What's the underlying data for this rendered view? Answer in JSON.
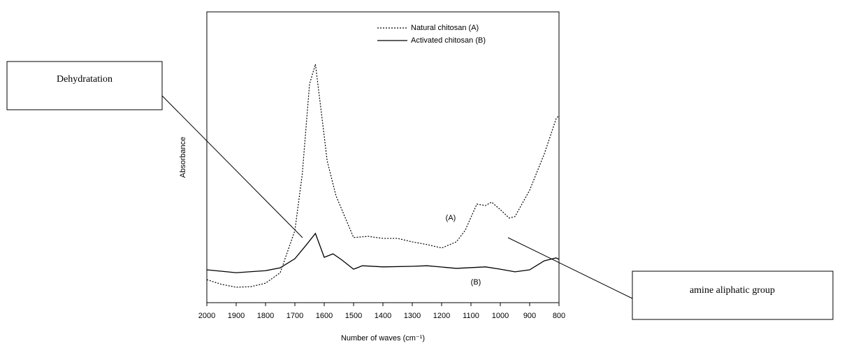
{
  "chart_data": {
    "type": "line",
    "xlabel": "Number of waves (cm⁻¹)",
    "ylabel": "Absorbance",
    "xlim": [
      2000,
      800
    ],
    "xticks": [
      2000,
      1900,
      1800,
      1700,
      1600,
      1500,
      1400,
      1300,
      1200,
      1100,
      1000,
      900,
      800
    ],
    "ylim": [
      0,
      100
    ],
    "legend": "upper right",
    "annotations": [
      "(A)",
      "(B)",
      "Dehydratation",
      "amine aliphatic group"
    ],
    "series": [
      {
        "name": "Natural chitosan (A)",
        "color": "#000000",
        "dash": "dotted",
        "x": [
          2000,
          1950,
          1900,
          1850,
          1800,
          1750,
          1700,
          1675,
          1650,
          1630,
          1610,
          1590,
          1560,
          1530,
          1500,
          1450,
          1400,
          1350,
          1300,
          1250,
          1200,
          1150,
          1120,
          1080,
          1050,
          1030,
          1000,
          970,
          950,
          900,
          850,
          810,
          800
        ],
        "values": [
          7.9,
          6.3,
          5.3,
          5.5,
          6.7,
          10.3,
          24.8,
          44,
          75.2,
          82,
          65.6,
          48.8,
          36.8,
          29.6,
          22.4,
          22.8,
          22.1,
          22.1,
          20.9,
          20,
          18.8,
          20.9,
          24.8,
          33.9,
          33.4,
          34.6,
          32,
          29.1,
          29.6,
          38.7,
          51.2,
          63.2,
          64.4
        ]
      },
      {
        "name": "Activated chitosan (B)",
        "color": "#000000",
        "dash": "solid",
        "x": [
          2000,
          1900,
          1800,
          1750,
          1700,
          1660,
          1630,
          1600,
          1570,
          1540,
          1500,
          1470,
          1400,
          1300,
          1250,
          1150,
          1050,
          1000,
          950,
          900,
          850,
          810,
          800
        ],
        "values": [
          11.3,
          10.3,
          11,
          12,
          15.1,
          20,
          23.8,
          15.6,
          16.8,
          14.7,
          11.5,
          12.7,
          12.3,
          12.5,
          12.7,
          11.8,
          12.3,
          11.5,
          10.6,
          11.3,
          14.4,
          15.4,
          14.9
        ]
      }
    ]
  }
}
